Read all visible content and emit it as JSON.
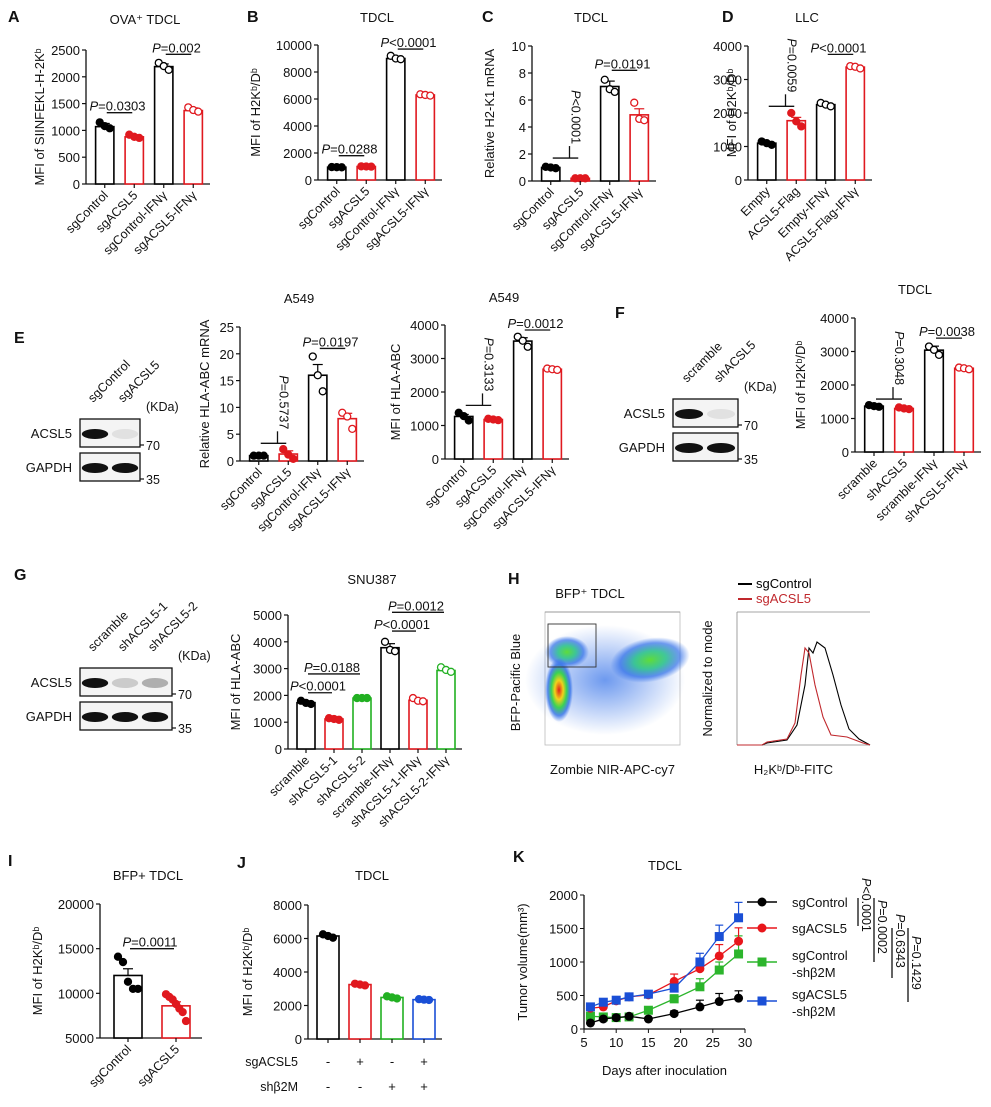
{
  "chart_data": [
    {
      "panel": "A",
      "type": "bar",
      "title": "OVA⁺ TDCL",
      "ylabel": "MFI of SIINFEKL-H-2Kᵇ",
      "ylim": [
        0,
        2500
      ],
      "yticks": [
        0,
        500,
        1000,
        1500,
        2000,
        2500
      ],
      "categories": [
        "sgControl",
        "sgACSL5",
        "sgControl-IFNγ",
        "sgACSL5-IFNγ"
      ],
      "colors": [
        "#000000",
        "#e0191f",
        "#000000",
        "#e0191f"
      ],
      "filled_points": [
        true,
        true,
        false,
        false
      ],
      "values": [
        1070,
        880,
        2190,
        1370
      ],
      "errors": [
        60,
        40,
        50,
        50
      ],
      "points": [
        [
          1150,
          1080,
          1040
        ],
        [
          920,
          880,
          860
        ],
        [
          2260,
          2200,
          2130
        ],
        [
          1430,
          1380,
          1350
        ]
      ],
      "comparisons": [
        {
          "groups": [
            0,
            1
          ],
          "label": "P=0.0303",
          "level": 1330,
          "rotated": false
        },
        {
          "groups": [
            2,
            3
          ],
          "label": "P=0.002",
          "level": 2420,
          "rotated": false
        }
      ]
    },
    {
      "panel": "B",
      "type": "bar",
      "title": "TDCL",
      "ylabel": "MFI of H2Kᵇ/Dᵇ",
      "ylim": [
        0,
        10000
      ],
      "yticks": [
        0,
        2000,
        4000,
        6000,
        8000,
        10000
      ],
      "categories": [
        "sgControl",
        "sgACSL5",
        "sgControl-IFNγ",
        "sgACSL5-IFNγ"
      ],
      "colors": [
        "#000000",
        "#e0191f",
        "#000000",
        "#e0191f"
      ],
      "filled_points": [
        true,
        true,
        false,
        false
      ],
      "values": [
        950,
        1000,
        9000,
        6300
      ],
      "errors": [
        30,
        30,
        100,
        50
      ],
      "points": [
        [
          960,
          950,
          940
        ],
        [
          1010,
          1000,
          990
        ],
        [
          9200,
          9000,
          8950
        ],
        [
          6350,
          6300,
          6250
        ]
      ],
      "comparisons": [
        {
          "groups": [
            0,
            1
          ],
          "label": "P=0.0288",
          "level": 1800,
          "rotated": false
        },
        {
          "groups": [
            2,
            3
          ],
          "label": "P<0.0001",
          "level": 9700,
          "rotated": false
        }
      ]
    },
    {
      "panel": "C",
      "type": "bar",
      "title": "TDCL",
      "ylabel": "Relative H2-K1 mRNA",
      "ylim": [
        0,
        10
      ],
      "yticks": [
        0,
        2,
        4,
        6,
        8,
        10
      ],
      "categories": [
        "sgControl",
        "sgACSL5",
        "sgControl-IFNγ",
        "sgACSL5-IFNγ"
      ],
      "colors": [
        "#000000",
        "#e0191f",
        "#000000",
        "#e0191f"
      ],
      "filled_points": [
        true,
        true,
        false,
        false
      ],
      "values": [
        1.0,
        0.2,
        7.0,
        4.9
      ],
      "errors": [
        0.05,
        0.03,
        0.4,
        0.45
      ],
      "points": [
        [
          1.05,
          1.0,
          0.95
        ],
        [
          0.2,
          0.2,
          0.2
        ],
        [
          7.5,
          6.8,
          6.6
        ],
        [
          5.8,
          4.6,
          4.5
        ]
      ],
      "comparisons": [
        {
          "groups": [
            0,
            1
          ],
          "label": "P<0.0001",
          "level": 1.7,
          "rotated": true
        },
        {
          "groups": [
            2,
            3
          ],
          "label": "P=0.0191",
          "level": 8.2,
          "rotated": false
        }
      ]
    },
    {
      "panel": "D",
      "type": "bar",
      "title": "LLC",
      "ylabel": "MFI of H2Kᵇ/Dᵇ",
      "ylim": [
        0,
        4000
      ],
      "yticks": [
        0,
        1000,
        2000,
        3000,
        4000
      ],
      "categories": [
        "Empty",
        "ACSL5-Flag",
        "Empty-IFNγ",
        "ACSL5-Flag-IFNγ"
      ],
      "colors": [
        "#000000",
        "#e0191f",
        "#000000",
        "#e0191f"
      ],
      "filled_points": [
        true,
        true,
        false,
        false
      ],
      "values": [
        1100,
        1770,
        2250,
        3370
      ],
      "errors": [
        30,
        100,
        30,
        30
      ],
      "points": [
        [
          1150,
          1100,
          1050
        ],
        [
          2000,
          1750,
          1600
        ],
        [
          2300,
          2250,
          2200
        ],
        [
          3400,
          3380,
          3330
        ]
      ],
      "comparisons": [
        {
          "groups": [
            0,
            1
          ],
          "label": "P=0.0059",
          "level": 2200,
          "rotated": true
        },
        {
          "groups": [
            2,
            3
          ],
          "label": "P<0.0001",
          "level": 3750,
          "rotated": false
        }
      ]
    },
    {
      "panel": "E",
      "type": "bar",
      "title": "A549",
      "ylabel": "Relative HLA-ABC mRNA",
      "ylim": [
        0,
        25
      ],
      "yticks": [
        0,
        5,
        10,
        15,
        20,
        25
      ],
      "categories": [
        "sgControl",
        "sgACSL5",
        "sgControl-IFNγ",
        "sgACSL5-IFNγ"
      ],
      "colors": [
        "#000000",
        "#e0191f",
        "#000000",
        "#e0191f"
      ],
      "filled_points": [
        true,
        true,
        false,
        false
      ],
      "values": [
        1.0,
        1.3,
        16.0,
        7.9
      ],
      "errors": [
        0.05,
        0.6,
        2.0,
        1.0
      ],
      "points": [
        [
          1.0,
          1.0,
          1.0
        ],
        [
          2.2,
          1.2,
          0.4
        ],
        [
          19.5,
          16.0,
          13.0
        ],
        [
          9.0,
          8.3,
          6.0
        ]
      ],
      "comparisons": [
        {
          "groups": [
            0,
            1
          ],
          "label": "P=0.5737",
          "level": 3.3,
          "rotated": true
        },
        {
          "groups": [
            2,
            3
          ],
          "label": "P=0.0197",
          "level": 21,
          "rotated": false
        }
      ]
    },
    {
      "panel": "E2",
      "type": "bar",
      "title": "A549",
      "ylabel": "MFI of HLA-ABC",
      "ylim": [
        0,
        4000
      ],
      "yticks": [
        0,
        1000,
        2000,
        3000,
        4000
      ],
      "categories": [
        "sgControl",
        "sgACSL5",
        "sgControl-IFNγ",
        "sgACSL5-IFNγ"
      ],
      "colors": [
        "#000000",
        "#e0191f",
        "#000000",
        "#e0191f"
      ],
      "filled_points": [
        true,
        true,
        false,
        false
      ],
      "values": [
        1270,
        1180,
        3520,
        2680
      ],
      "errors": [
        60,
        20,
        100,
        20
      ],
      "points": [
        [
          1380,
          1280,
          1150
        ],
        [
          1200,
          1180,
          1160
        ],
        [
          3650,
          3530,
          3350
        ],
        [
          2700,
          2680,
          2660
        ]
      ],
      "comparisons": [
        {
          "groups": [
            0,
            1
          ],
          "label": "P=0.3133",
          "level": 1600,
          "rotated": true
        },
        {
          "groups": [
            2,
            3
          ],
          "label": "P=0.0012",
          "level": 3850,
          "rotated": false
        }
      ]
    },
    {
      "panel": "F",
      "type": "bar",
      "title": "TDCL",
      "ylabel": "MFI of H2Kᵇ/Dᵇ",
      "ylim": [
        0,
        4000
      ],
      "yticks": [
        0,
        1000,
        2000,
        3000,
        4000
      ],
      "categories": [
        "scramble",
        "shACSL5",
        "scramble-IFNγ",
        "shACSL5-IFNγ"
      ],
      "colors": [
        "#000000",
        "#e0191f",
        "#000000",
        "#e0191f"
      ],
      "filled_points": [
        true,
        true,
        false,
        false
      ],
      "values": [
        1370,
        1300,
        3040,
        2500
      ],
      "errors": [
        20,
        20,
        120,
        30
      ],
      "points": [
        [
          1400,
          1370,
          1350
        ],
        [
          1330,
          1300,
          1280
        ],
        [
          3150,
          3050,
          2900
        ],
        [
          2520,
          2500,
          2470
        ]
      ],
      "comparisons": [
        {
          "groups": [
            0,
            1
          ],
          "label": "P=0.3048",
          "level": 1580,
          "rotated": true
        },
        {
          "groups": [
            2,
            3
          ],
          "label": "P=0.0038",
          "level": 3400,
          "rotated": false
        }
      ]
    },
    {
      "panel": "G",
      "type": "bar",
      "title": "SNU387",
      "ylabel": "MFI of HLA-ABC",
      "ylim": [
        0,
        5000
      ],
      "yticks": [
        0,
        1000,
        2000,
        3000,
        4000,
        5000
      ],
      "categories": [
        "scramble",
        "shACSL5-1",
        "shACSL5-2",
        "scramble-IFNγ",
        "shACSL5-1-IFNγ",
        "shACSL5-2-IFNγ"
      ],
      "colors": [
        "#000000",
        "#e0191f",
        "#22b022",
        "#000000",
        "#e0191f",
        "#22b022"
      ],
      "filled_points": [
        true,
        true,
        true,
        false,
        false,
        false
      ],
      "values": [
        1730,
        1120,
        1900,
        3780,
        1820,
        2930
      ],
      "errors": [
        50,
        30,
        10,
        150,
        50,
        60
      ],
      "points": [
        [
          1800,
          1720,
          1680
        ],
        [
          1150,
          1120,
          1090
        ],
        [
          1900,
          1900,
          1900
        ],
        [
          4000,
          3700,
          3650
        ],
        [
          1900,
          1800,
          1780
        ],
        [
          3050,
          2950,
          2880
        ]
      ],
      "comparisons": [
        {
          "groups": [
            0,
            1
          ],
          "label": "P<0.0001",
          "level": 2100,
          "rotated": false
        },
        {
          "groups": [
            0,
            2
          ],
          "label": "P=0.0188",
          "level": 2800,
          "rotated": false
        },
        {
          "groups": [
            3,
            4
          ],
          "label": "P<0.0001",
          "level": 4400,
          "rotated": false
        },
        {
          "groups": [
            3,
            5
          ],
          "label": "P=0.0012",
          "level": 5100,
          "rotated": false
        }
      ]
    },
    {
      "panel": "I",
      "type": "bar",
      "title": "BFP+ TDCL",
      "ylabel": "MFI of H2Kᵇ/Dᵇ",
      "ylim": [
        5000,
        20000
      ],
      "yticks": [
        5000,
        10000,
        15000,
        20000
      ],
      "categories": [
        "sgControl",
        "sgACSL5"
      ],
      "colors": [
        "#000000",
        "#e0191f"
      ],
      "filled_points": [
        true,
        true
      ],
      "values": [
        12000,
        8600
      ],
      "errors": [
        750,
        450
      ],
      "points": [
        [
          14100,
          13500,
          11300,
          10500,
          10500
        ],
        [
          9900,
          9600,
          9300,
          8800,
          8300,
          7900,
          6900
        ]
      ],
      "comparisons": [
        {
          "groups": [
            0,
            1
          ],
          "label": "P=0.0011",
          "level": 15000,
          "rotated": false
        }
      ]
    },
    {
      "panel": "J",
      "type": "bar",
      "title": "TDCL",
      "ylabel": "MFI of H2Kᵇ/Dᵇ",
      "ylim": [
        0,
        8000
      ],
      "yticks": [
        0,
        2000,
        4000,
        6000,
        8000
      ],
      "categories": [
        "sgACSL5 − / shβ2M −",
        "sgACSL5 + / shβ2M −",
        "sgACSL5 − / shβ2M +",
        "sgACSL5 + / shβ2M +"
      ],
      "colors": [
        "#000000",
        "#e0191f",
        "#22b022",
        "#1a4fd6"
      ],
      "filled_points": [
        true,
        true,
        true,
        true
      ],
      "values": [
        6150,
        3250,
        2480,
        2350
      ],
      "errors": [
        50,
        40,
        50,
        40
      ],
      "points": [
        [
          6250,
          6150,
          6050
        ],
        [
          3300,
          3250,
          3200
        ],
        [
          2550,
          2480,
          2420
        ],
        [
          2380,
          2350,
          2330
        ]
      ],
      "row_labels": [
        "sgACSL5",
        "shβ2M"
      ],
      "row_values": [
        [
          "-",
          "+",
          "-",
          "+"
        ],
        [
          "-",
          "-",
          "+",
          "+"
        ]
      ],
      "comparisons": []
    },
    {
      "panel": "K",
      "type": "line",
      "title": "TDCL",
      "xlabel": "Days after inoculation",
      "ylabel": "Tumor volume(mm³)",
      "xlim": [
        5,
        30
      ],
      "xticks": [
        5,
        10,
        15,
        20,
        25,
        30
      ],
      "ylim": [
        0,
        2000
      ],
      "yticks": [
        0,
        500,
        1000,
        1500,
        2000
      ],
      "x": [
        6,
        8,
        10,
        12,
        15,
        19,
        23,
        26,
        29
      ],
      "series": [
        {
          "name": "sgControl",
          "color": "#000000",
          "marker": "circle",
          "values": [
            90,
            150,
            170,
            190,
            150,
            230,
            330,
            410,
            460
          ],
          "errors": [
            20,
            20,
            20,
            20,
            20,
            40,
            100,
            120,
            110
          ]
        },
        {
          "name": "sgACSL5",
          "color": "#e8161b",
          "marker": "circle",
          "values": [
            310,
            330,
            420,
            480,
            510,
            710,
            900,
            1090,
            1310
          ],
          "errors": [
            30,
            30,
            30,
            30,
            40,
            110,
            100,
            170,
            200
          ]
        },
        {
          "name": "sgControl-shβ2M",
          "color": "#2cb52c",
          "marker": "square",
          "values": [
            190,
            180,
            170,
            180,
            280,
            450,
            630,
            880,
            1120
          ],
          "errors": [
            20,
            20,
            20,
            20,
            30,
            60,
            120,
            120,
            270
          ]
        },
        {
          "name": "sgACSL5-shβ2M",
          "color": "#1a4fd6",
          "marker": "square",
          "values": [
            330,
            400,
            430,
            480,
            520,
            610,
            1000,
            1380,
            1660
          ],
          "errors": [
            30,
            30,
            30,
            30,
            50,
            60,
            130,
            170,
            230
          ]
        }
      ],
      "legend_labels": [
        "sgControl",
        "sgACSL5",
        "sgControl",
        "-shβ2M",
        "sgACSL5",
        "-shβ2M"
      ],
      "legend_position": "right",
      "comparisons": [
        "P<0.0001",
        "P=0.0002",
        "P=0.6343",
        "P=0.1429"
      ]
    }
  ],
  "panel_letters": [
    "A",
    "B",
    "C",
    "D",
    "E",
    "F",
    "G",
    "H",
    "I",
    "J",
    "K"
  ],
  "titles": {
    "A": "OVA⁺ TDCL",
    "B": "TDCL",
    "C": "TDCL",
    "D": "LLC",
    "E1": "A549",
    "E2": "A549",
    "F": "TDCL",
    "G": "SNU387",
    "H": "BFP⁺ TDCL",
    "I": "BFP+ TDCL",
    "J": "TDCL",
    "K": "TDCL"
  },
  "blots": {
    "E": {
      "lanes": [
        "sgControl",
        "sgACSL5"
      ],
      "proteins": [
        "ACSL5",
        "GAPDH"
      ],
      "kda_label": "(KDa)",
      "markers": [
        "70",
        "35"
      ]
    },
    "F": {
      "lanes": [
        "scramble",
        "shACSL5"
      ],
      "proteins": [
        "ACSL5",
        "GAPDH"
      ],
      "kda_label": "(KDa)",
      "markers": [
        "70",
        "35"
      ]
    },
    "G": {
      "lanes": [
        "scramble",
        "shACSL5-1",
        "shACSL5-2"
      ],
      "proteins": [
        "ACSL5",
        "GAPDH"
      ],
      "kda_label": "(KDa)",
      "markers": [
        "70",
        "35"
      ]
    }
  },
  "flow": {
    "title": "BFP⁺ TDCL",
    "scatter_xlabel": "Zombie NIR-APC-cy7",
    "scatter_ylabel": "BFP-Pacific Blue",
    "hist_xlabel": "H₂Kᵇ/Dᵇ-FITC",
    "hist_ylabel": "Normalized to mode",
    "legend": [
      {
        "name": "sgControl",
        "color": "#000000"
      },
      {
        "name": "sgACSL5",
        "color": "#c0282d"
      }
    ]
  }
}
